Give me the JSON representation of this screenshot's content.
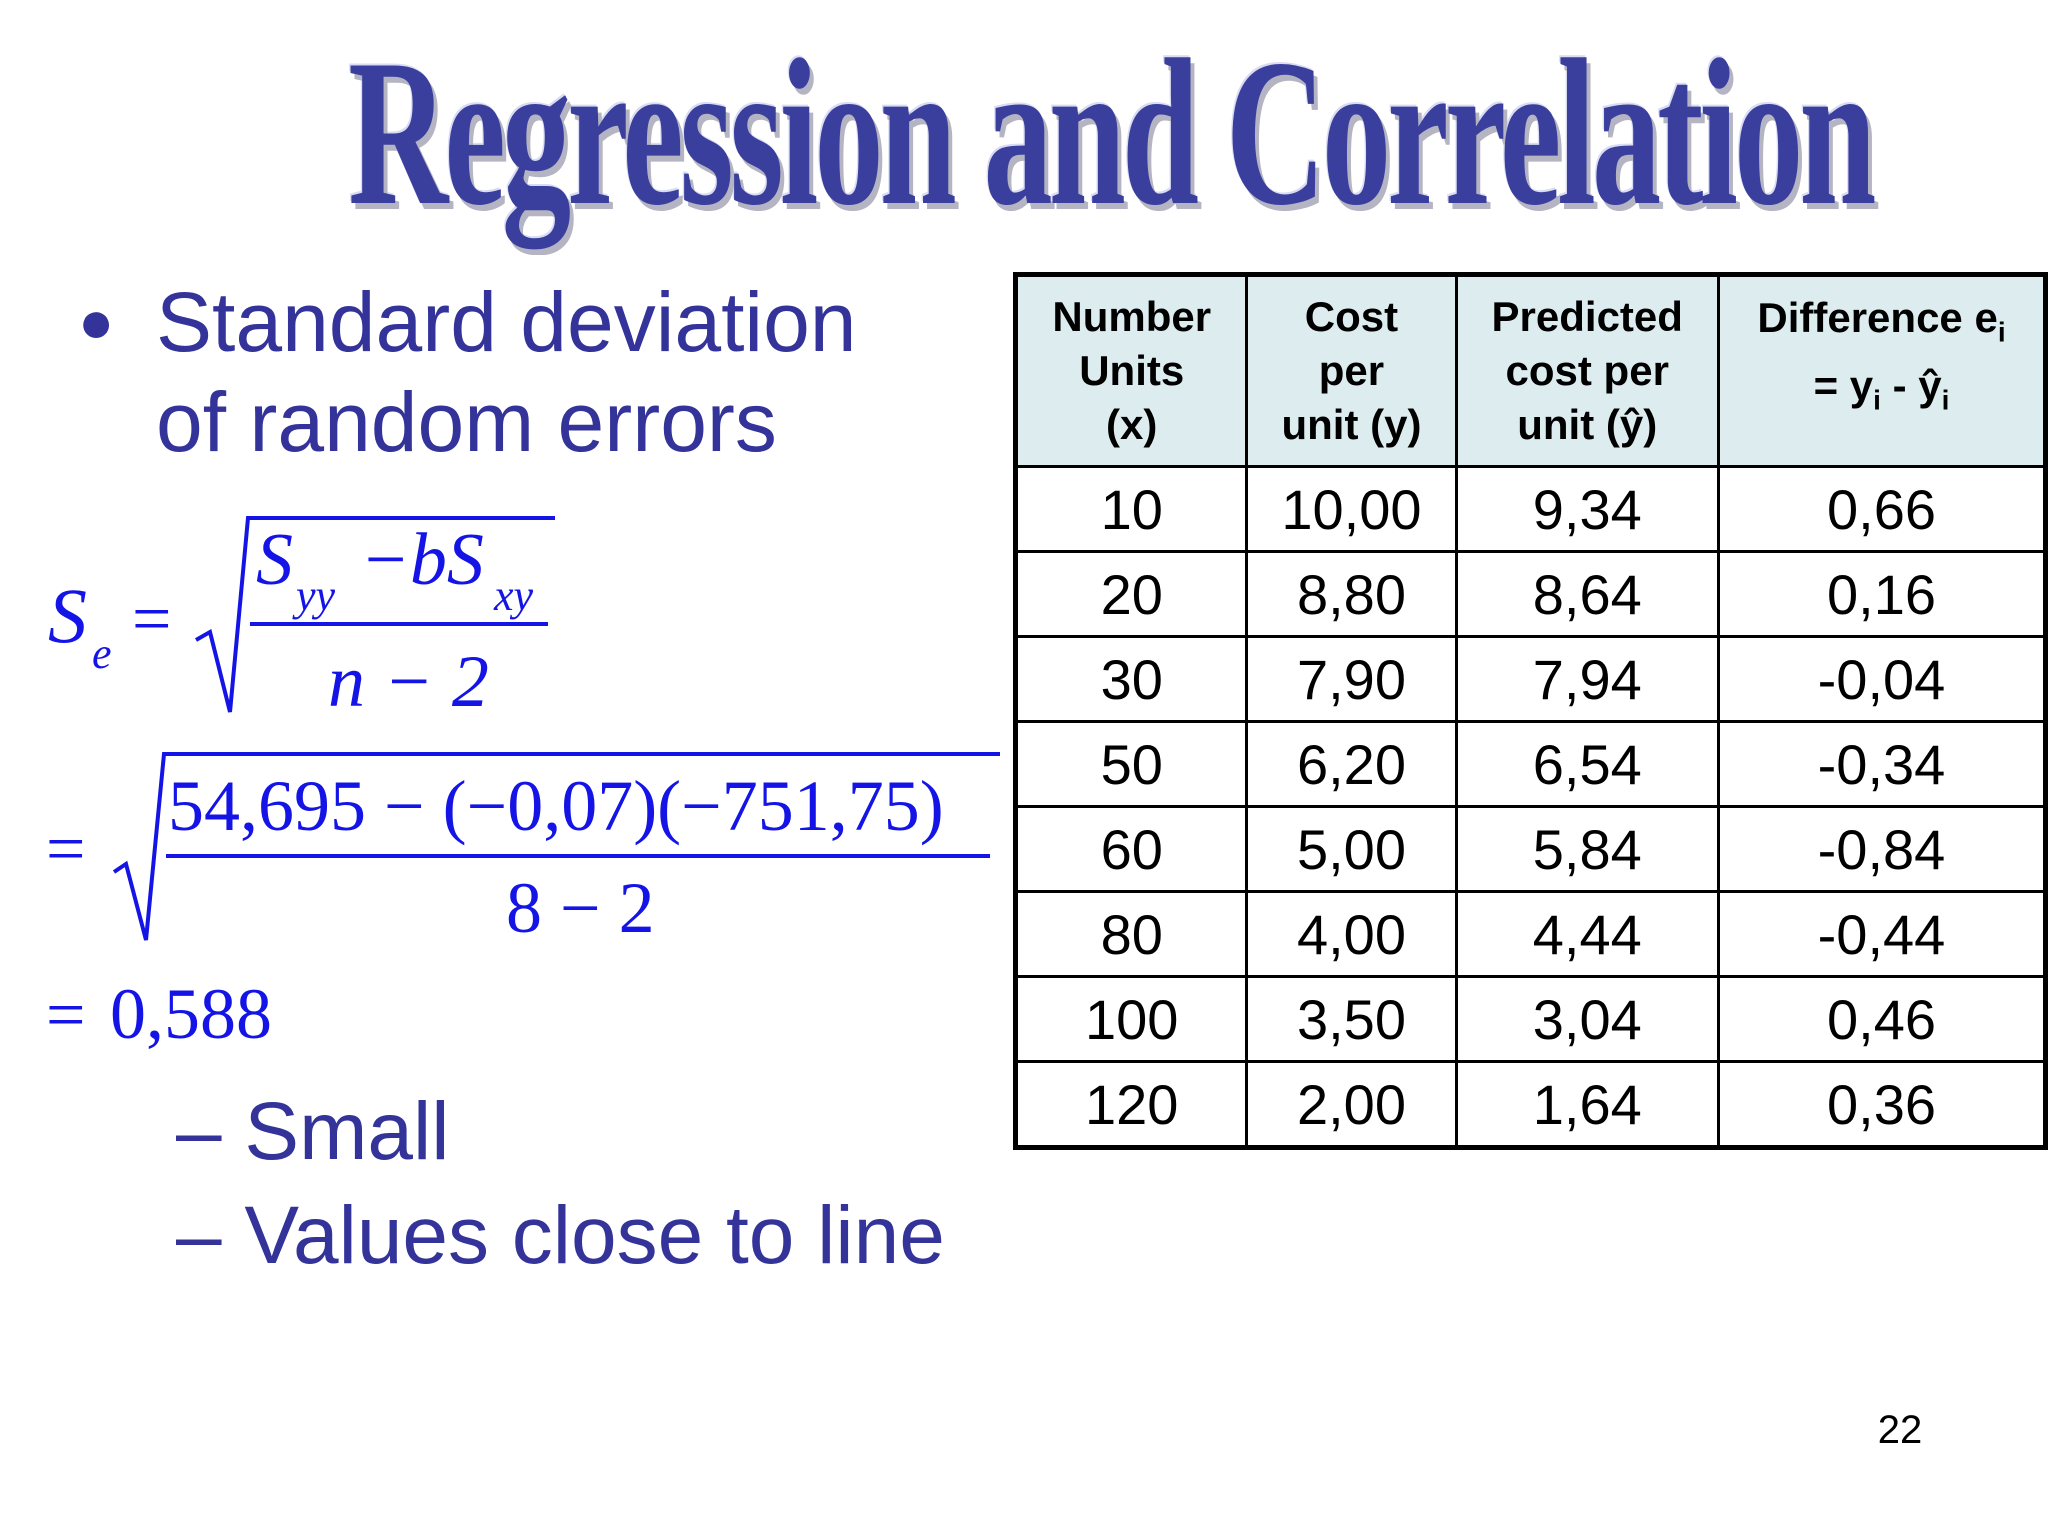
{
  "slide": {
    "title": "Regression and Correlation",
    "bullet": "Standard deviation of random errors",
    "bullet_line1": "Standard deviation",
    "bullet_line2": "of random errors",
    "sub_bullets": [
      "– Small",
      "– Values close to line"
    ],
    "page_number": "22"
  },
  "formula": {
    "lhs": "S",
    "lhs_sub": "e",
    "general_numerator_a": "S",
    "general_numerator_a_sub": "yy",
    "general_numerator_b": "−bS",
    "general_numerator_b_sub": "xy",
    "general_denominator": "n − 2",
    "numeric_numerator": "54,695 − (−0,07)(−751,75)",
    "numeric_denominator": "8 − 2",
    "result": "0,588",
    "equals": "="
  },
  "table": {
    "headers": [
      {
        "line1": "Number",
        "line2": "Units",
        "line3": "(x)"
      },
      {
        "line1": "Cost",
        "line2": "per",
        "line3": "unit (y)"
      },
      {
        "line1": "Predicted",
        "line2": "cost per",
        "line3": "unit (ŷ)"
      },
      {
        "line1": "Difference e",
        "line1_sub": "i",
        "line2": "= y",
        "line2_sub": "i",
        "line2_mid": " - ŷ",
        "line2_sub2": "i"
      }
    ],
    "rows": [
      [
        "10",
        "10,00",
        "9,34",
        "0,66"
      ],
      [
        "20",
        "8,80",
        "8,64",
        "0,16"
      ],
      [
        "30",
        "7,90",
        "7,94",
        "-0,04"
      ],
      [
        "50",
        "6,20",
        "6,54",
        "-0,34"
      ],
      [
        "60",
        "5,00",
        "5,84",
        "-0,84"
      ],
      [
        "80",
        "4,00",
        "4,44",
        "-0,44"
      ],
      [
        "100",
        "3,50",
        "3,04",
        "0,46"
      ],
      [
        "120",
        "2,00",
        "1,64",
        "0,36"
      ]
    ]
  },
  "colors": {
    "title": "#3a3f9e",
    "bullet_text": "#33339a",
    "formula": "#1414e6",
    "header_bg": "#dcecef"
  }
}
